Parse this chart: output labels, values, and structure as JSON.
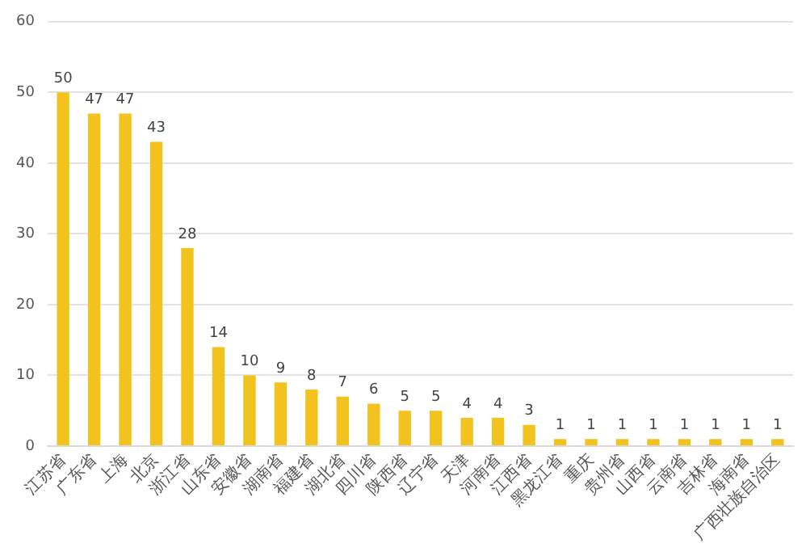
{
  "chart_data": {
    "type": "bar",
    "categories": [
      "江苏省",
      "广东省",
      "上海",
      "北京",
      "浙江省",
      "山东省",
      "安徽省",
      "湖南省",
      "福建省",
      "湖北省",
      "四川省",
      "陕西省",
      "辽宁省",
      "天津",
      "河南省",
      "江西省",
      "黑龙江省",
      "重庆",
      "贵州省",
      "山西省",
      "云南省",
      "吉林省",
      "海南省",
      "广西壮族自治区"
    ],
    "values": [
      50,
      47,
      47,
      43,
      28,
      14,
      10,
      9,
      8,
      7,
      6,
      5,
      5,
      4,
      4,
      3,
      1,
      1,
      1,
      1,
      1,
      1,
      1,
      1
    ],
    "color": "#f2c21e",
    "ylim": [
      0,
      60
    ],
    "yticks": [
      0,
      10,
      20,
      30,
      40,
      50,
      60
    ],
    "grid": "y",
    "data_labels": true,
    "legend": false
  }
}
